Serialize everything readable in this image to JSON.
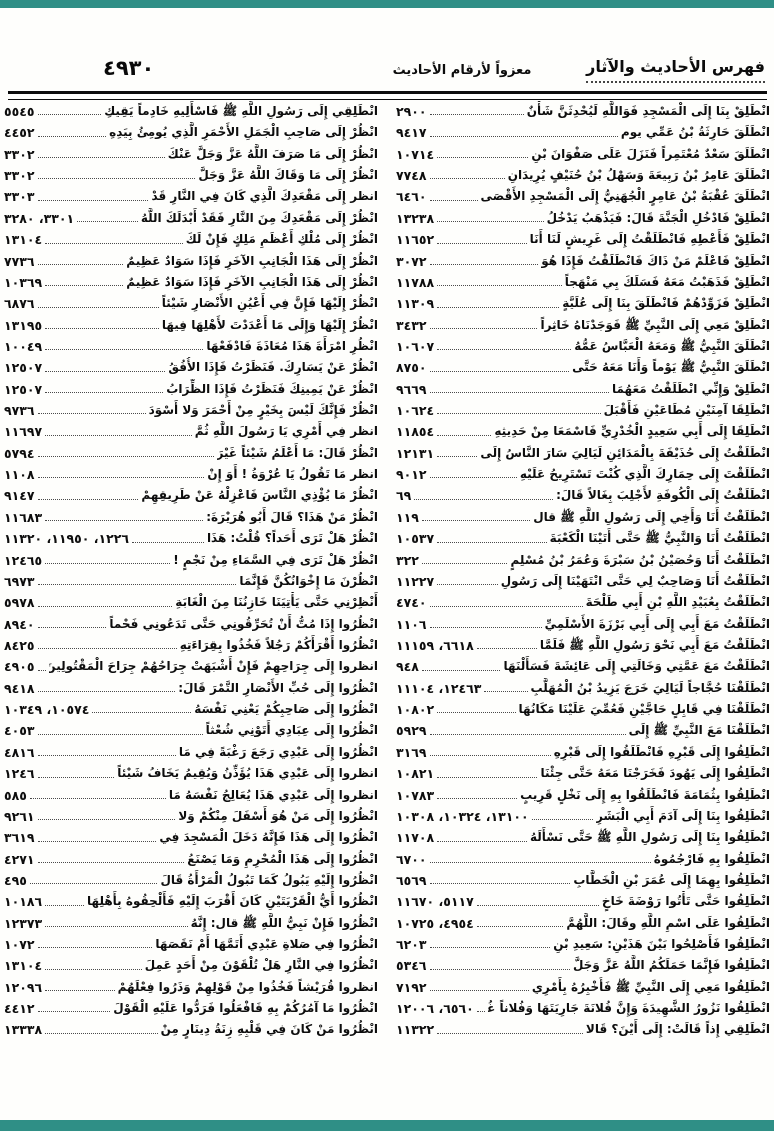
{
  "accent_color": "#2f8f86",
  "header": {
    "title_right": "فهرس الأحاديث والآثار",
    "title_center": "معزواً لأرقام الأحاديث",
    "page_number": "٤٩٣٠"
  },
  "columns": {
    "right": [
      {
        "text": "انْطَلِقْ بِنَا إِلَى الْمَسْجِدِ فَوَاللَّهِ لَيُحْدِثَنَّ شَأْنٌ",
        "nums": "٢٩٠٠"
      },
      {
        "text": "انْطَلَقَ حَارِثَةُ بْنُ عَمِّي يوم",
        "nums": "٩٤١٧"
      },
      {
        "text": "انْطَلَقَ سَعْدٌ مُعْتَمِراً فَنَزَلَ عَلَى صَفْوَانَ بْنِ",
        "nums": "١٠٧١٤"
      },
      {
        "text": "انْطَلَقَ عَامِرُ بْنُ رَبِيعَةَ وَسَهْلُ بْنُ حُنَيْفٍ يُرِيدَانِ",
        "nums": "٧٧٤٨"
      },
      {
        "text": "انْطَلَقَ عُقْبَةُ بْنُ عَامِرٍ الْجُهَنِيُّ إِلَى الْمَسْجِدِ الأَقْصَى",
        "nums": "٦٤٦٠"
      },
      {
        "text": "انْطَلِقْ فَادْخُلِ الْجَنَّةَ قَالَ: فَيَذْهَبُ يَدْخُلُ",
        "nums": "١٣٢٣٨"
      },
      {
        "text": "انْطَلِقْ فَأَعْطِهِ فَانْطَلَقْتُ إِلَى غَرِيشٍ لَنَا أَنَا",
        "nums": "١١٦٥٢"
      },
      {
        "text": "انْطَلِقْ فَاعْلَمْ مَنْ ذَاكَ فَانْطَلَقْتُ فَإِذَا هُوَ",
        "nums": "٣٠٧٢"
      },
      {
        "text": "انْطَلِقْ فَذَهَبْتُ مَعَهُ فَسَلَكَ بِي مَنْهَجاً",
        "nums": "١١٧٨٨"
      },
      {
        "text": "انْطَلِقْ فَزَوِّدْهُمْ فَانْطَلَقَ بِنَا إِلَى عُلَيَّةٍ",
        "nums": "١١٣٠٩"
      },
      {
        "text": "انْطَلِقْ مَعِي إِلَى النَّبِيِّ ﷺ فَوَجَدْنَاهُ خَاثِراً",
        "nums": "٣٤٣٢"
      },
      {
        "text": "انْطَلَقَ النَّبِيُّ ﷺ وَمَعَهُ الْعَبَّاسُ عَمُّهُ",
        "nums": "١٠٦٠٧"
      },
      {
        "text": "انْطَلَقَ النَّبِيُّ ﷺ يَوْماً وَأَنَا مَعَهُ حَتَّى",
        "nums": "٨٧٥٠"
      },
      {
        "text": "انْطَلِقْ وَإِنِّي انْطَلَقْتُ مَعَهُمَا",
        "nums": "٩٦٦٩"
      },
      {
        "text": "انْطَلِقَا آمِنَيْنِ مُطَاعَيْنِ فَأَقْبَلَ",
        "nums": "١٠٦٢٤"
      },
      {
        "text": "انْطَلِقَا إِلَى أَبِي سَعِيدٍ الْخُدْرِيِّ فَاسْمَعَا مِنْ حَدِيثِهِ",
        "nums": "١١٨٥٤"
      },
      {
        "text": "انْطَلَقْتُ إِلَى حُذَيْفَةَ بِالْمَدَائِنِ لَيَالِيَ سَارَ النَّاسُ إِلَى",
        "nums": "١٢١٣١"
      },
      {
        "text": "انْطَلَقْتَ إِلَى حِمَارِكَ الَّذِي كُنْتَ تَسْتَرِيحُ عَلَيْهِ",
        "nums": "٩٠١٢"
      },
      {
        "text": "انْطَلَقْتُ إِلَى الْكُوفَةِ لأَجْلِبَ بِغَالاً قَالَ:",
        "nums": "٦٩"
      },
      {
        "text": "انْطَلَقْتُ أَنَا وَأَخِي إِلَى رَسُولِ اللَّهِ ﷺ قال",
        "nums": "١١٩"
      },
      {
        "text": "انْطَلَقْتُ أَنَا وَالنَّبِيُّ ﷺ حَتَّى أَتَيْنَا الْكَعْبَةَ",
        "nums": "١٠٥٣٧"
      },
      {
        "text": "انْطَلَقْتُ أَنَا وَحُصَيْنُ بْنُ سَبْرَةَ وَعُمَرُ بْنُ مُسْلِمٍ",
        "nums": "٣٢٢"
      },
      {
        "text": "انْطَلَقْتُ أَنَا وَصَاحِبٌ لِي حَتَّى انْتَهَيْنَا إِلَى رَسُولِ",
        "nums": "١١٢٢٧"
      },
      {
        "text": "انْطَلَقْتُ بِعُبَيْدِ اللَّهِ بْنِ أَبِي طَلْحَةَ",
        "nums": "٤٧٤٠"
      },
      {
        "text": "انْطَلَقْتُ مَعَ أَبِي إِلَى أَبِي بَرْزَةَ الأَسْلَمِيِّ",
        "nums": "١١٠٦"
      },
      {
        "text": "انْطَلَقْتُ مَعَ أَبِي نَحْوَ رَسُولِ اللَّهِ ﷺ فَلَمَّا",
        "nums": "٦٦١٨، ١١١٥٩"
      },
      {
        "text": "انْطَلَقْتُ مَعَ عَمَّتِي وَخَالَتِي إِلَى عَائِشَةَ فَسَأَلْنَهَا",
        "nums": "٩٤٨"
      },
      {
        "text": "انْطَلَقْنَا حُجَّاجاً لَيَالِيَ خَرَجَ يَزِيدُ بْنُ الْمُهَلَّبِ",
        "nums": "١٢٤٦٣، ١١١٠٤"
      },
      {
        "text": "انْطَلَقْنَا فِي قَابِلٍ حَاجَّيْنِ فَعُمِّيَ عَلَيْنَا مَكَانُهَا",
        "nums": "١٠٨٠٢"
      },
      {
        "text": "انْطَلَقْنَا مَعَ النَّبِيِّ ﷺ إِلَى",
        "nums": "٥٩٢٩"
      },
      {
        "text": "انْطَلِقُوا إِلَى قَبْرِهِ فَانْطَلَقُوا إِلَى قَبْرِهِ",
        "nums": "٣١٦٩"
      },
      {
        "text": "انْطَلِقُوا إِلَى يَهُودَ فَخَرَجْنَا مَعَهُ حَتَّى جِئْنَا",
        "nums": "١٠٨٢١"
      },
      {
        "text": "انْطَلِقُوا بِثُمَامَةَ فَانْطَلَقُوا بِهِ إِلَى نَخْلٍ قَرِيبٍ",
        "nums": "١٠٧٨٣"
      },
      {
        "text": "انْطَلِقُوا بِنَا إِلَى آدَمَ أَبِي الْبَشَرِ",
        "nums": "١٣١٠٠، ١٠٣٢٤، ١٠٣٠٨"
      },
      {
        "text": "انْطَلِقُوا بِنَا إِلَى رَسُولِ اللَّهِ ﷺ حَتَّى نَسْأَلَهُ",
        "nums": "١١٧٠٨"
      },
      {
        "text": "انْطَلِقُوا بِهِ فَارْجُمُوهُ",
        "nums": "٦٧٠٠"
      },
      {
        "text": "انْطَلِقُوا بِهِمَا إِلَى عُمَرَ بْنِ الْخَطَّابِ",
        "nums": "٦٥٦٩"
      },
      {
        "text": "انْطَلِقُوا حَتَّى تَأْتُوا رَوْضَةَ خَاخٍ",
        "nums": "٥١١٧، ١١٦٧٠"
      },
      {
        "text": "انْطَلِقُوا عَلَى اسْمِ اللَّهِ وقَالَ: اللَّهُمَّ",
        "nums": "٤٩٥٤، ١٠٧٢٥"
      },
      {
        "text": "انْطَلِقُوا فَأَصْلِحُوا بَيْنَ هَذَيْنِ: سَعِيدِ بْنِ",
        "nums": "٦٢٠٣"
      },
      {
        "text": "انْطَلِقُوا فَإِنَّمَا حَمَلَكُمُ اللَّهُ عَزَّ وَجَلَّ",
        "nums": "٥٣٤٦"
      },
      {
        "text": "انْطَلِقُوا مَعِي إِلَى النَّبِيِّ ﷺ فَأُخْبِرُهُ بِأَمْرِي",
        "nums": "٧١٩٢"
      },
      {
        "text": "انْطَلِقُوا نَزُورُ الشَّهِيدَةَ وَإِنَّ فُلانَةَ جَارِيَتَهَا وَفُلاناً غُلامَهَا",
        "nums": "٦٥٦٠، ١٢٠٠٦"
      },
      {
        "text": "انْطَلِقِي إِذاً قَالَتْ: إِلَى أَيْنَ؟ قَالا",
        "nums": "١١٣٢٢"
      }
    ],
    "left": [
      {
        "text": "انْطَلِقِي إِلَى رَسُولِ اللَّهِ ﷺ فَاسْأَلِيهِ خَادِماً يَقِيكِ",
        "nums": "٥٥٤٥"
      },
      {
        "text": "انْظُرْ إِلَى صَاحِبِ الْجَمَلِ الأَحْمَرِ الَّذِي يُومِئُ بِيَدِهِ",
        "nums": "٤٤٥٢"
      },
      {
        "text": "انْظُرْ إِلَى مَا صَرَفَ اللَّهُ عَزَّ وَجَلَّ عَنْكَ",
        "nums": "٣٣٠٢"
      },
      {
        "text": "انْظُرْ إِلَى مَا وَقَاكَ اللَّهُ عَزَّ وَجَلَّ",
        "nums": "٣٣٠٢"
      },
      {
        "text": "انظر إِلَى مَقْعَدِكَ الَّذِي كَانَ فِي النَّارِ قَدْ",
        "nums": "٣٣٠٣"
      },
      {
        "text": "انْظُرْ إِلَى مَقْعَدِكَ مِنَ النَّارِ فَقَدْ أَبْدَلَكَ اللَّهُ",
        "nums": "٣٣٠١، ٣٢٨٠"
      },
      {
        "text": "انْظُرْ إِلَى مُلْكِ أَعْظَمِ مَلِكٍ فَإِنْ لَكَ",
        "nums": "١٣١٠٤"
      },
      {
        "text": "انْظُرْ إِلَى هَذَا الْجَانِبِ الآخَرِ فَإِذَا سَوَادٌ عَظِيمٌ",
        "nums": "٧٧٣٦"
      },
      {
        "text": "انْظُرْ إِلَى هَذَا الْجَانِبِ الآخَرِ فَإِذَا سَوَادٌ عَظِيمٌ",
        "nums": "١٠٣٦٩"
      },
      {
        "text": "انْظُرْ إِلَيْهَا فَإِنَّ فِي أَعْيُنِ الأَنْصَارِ شَيْئاً",
        "nums": "٦٨٧٦"
      },
      {
        "text": "انْظُرْ إِلَيْهَا وَإِلَى مَا أَعْدَدْتَ لأَهْلِهَا فِيهَا",
        "nums": "١٣١٩٥"
      },
      {
        "text": "انْظُرِ امْرَأَةَ هَذَا مُعَاذَةَ فَادْفَعْهَا",
        "nums": "١٠٠٤٩"
      },
      {
        "text": "انْظُرْ عَنْ يَسَارِكَ. فَنَظَرْتُ فَإِذَا الأُفُقُ",
        "nums": "١٢٥٠٧"
      },
      {
        "text": "انْظُرْ عَنْ يَمِينِكَ فَنَظَرْتُ فَإِذَا الظِّرَابُ",
        "nums": "١٢٥٠٧"
      },
      {
        "text": "انْظُرْ فَإِنَّكَ لَيْسَ بِخَيْرٍ مِنْ أَحْمَرَ وَلا أَسْوَدَ",
        "nums": "٩٧٣٦"
      },
      {
        "text": "انظر فِي أَمْرِي يَا رَسُولَ اللَّهِ ثُمَّ",
        "nums": "١١٦٩٧"
      },
      {
        "text": "انْظُرْ قَالَ: مَا أَعْلَمُ شَيْئاً غَيْرَ",
        "nums": "٥٧٩٤"
      },
      {
        "text": "انظر مَا تَقُولُ يَا عُرْوَةُ ! أَوَ إِنْ",
        "nums": "١١٠٨"
      },
      {
        "text": "انْظُرْ مَا يُؤْذِي النَّاسَ فَاعْزِلْهُ عَنْ طَرِيقِهِمْ",
        "nums": "٩١٤٧"
      },
      {
        "text": "انْظُرْ مَنْ هَذَا؟ قَالَ أَبُو هُرَيْرَةَ:",
        "nums": "١١٦٨٣"
      },
      {
        "text": "انْظُرْ هَلْ تَرَى أَحَداً؟ قُلْتُ: هَذَا",
        "nums": "١٢٢٦، ١١٩٥٠، ١١٣٢٠"
      },
      {
        "text": "انْظُرْ هَلْ تَرَى فِي السَّمَاءِ مِنْ نَجْمٍ !",
        "nums": "١٢٤٦٥"
      },
      {
        "text": "انْظُرْنَ مَا إِخْوَانُكُنَّ فَإِنَّمَا",
        "nums": "٦٩٧٣"
      },
      {
        "text": "أَنْظِرْنِي حَتَّى يَأْتِيَنَا خَازِنُنَا مِنَ الْغَابَةِ",
        "nums": "٥٩٧٨"
      },
      {
        "text": "انْظُرُوا إِذَا مُتُّ أَنْ تُحَرِّقُونِي حَتَّى تَدَعُونِي فَحْماً",
        "nums": "٨٩٤٠"
      },
      {
        "text": "انْظُرُوا أَقْرَأَكُمْ رَجُلاً فَخُذُوا بِقِرَاءَتِهِ",
        "nums": "٨٤٢٥"
      },
      {
        "text": "انظروا إِلَى جِرَاحِهِمْ فَإِنْ أَشْبَهَتْ جِرَاحُهُمْ جِرَاحَ الْمَقْتُولِينَ",
        "nums": "٤٩٠٥"
      },
      {
        "text": "انْظُرُوا إِلَى حُبِّ الأَنْصَارِ التَّمْرَ قَالَ:",
        "nums": "٩٤١٨"
      },
      {
        "text": "انْظُرُوا إِلَى صَاحِبِكُمْ يَعْنِي نَفْسَهُ",
        "nums": "١٠٥٧٤، ١٠٣٤٩"
      },
      {
        "text": "انْظُرُوا إِلَى عِبَادِي أَتَوْنِي شُعْثاً",
        "nums": "٤٠٥٣"
      },
      {
        "text": "انْظُرُوا إِلَى عَبْدِي رَجَعَ رَغْبَةً فِي مَا",
        "nums": "٤٨١٦"
      },
      {
        "text": "انظروا إِلَى عَبْدِي هَذَا يُؤَذِّنُ وَيُقِيمُ يَخَافُ شَيْئاً",
        "nums": "١٢٤٦"
      },
      {
        "text": "انظروا إِلَى عَبْدِي هَذَا يُعَالِجُ نَفْسَهُ مَا",
        "nums": "٥٨٥"
      },
      {
        "text": "انْظُرُوا إِلَى مَنْ هُوَ أَسْفَلَ مِنْكُمْ وَلا",
        "nums": "٩٢٦١"
      },
      {
        "text": "انْظُرُوا إِلَى هَذَا فَإِنَّهُ دَخَلَ الْمَسْجِدَ فِي",
        "nums": "٣٦١٩"
      },
      {
        "text": "انْظُرُوا إِلَى هَذَا الْمُحْرِمِ وَمَا يَصْنَعُ",
        "nums": "٤٢٧١"
      },
      {
        "text": "انْظُرُوا إِلَيْهِ يَبُولُ كَمَا تَبُولُ الْمَرْأَةُ قَالَ",
        "nums": "٤٩٥"
      },
      {
        "text": "انْظُرُوا أَيُّ الْقَرْيَتَيْنِ كَانَ أَقْرَبَ إِلَيْهِ فَأَلْحِقُوهُ بِأَهْلِهَا",
        "nums": "١٠١٨٦"
      },
      {
        "text": "انْظُرُوا فَإِنْ نَبِيُّ اللَّهِ ﷺ قال: إِنَّهُ",
        "nums": "١٢٣٧٣"
      },
      {
        "text": "انْظُرُوا فِي صَلاةِ عَبْدِي أَتَمَّهَا أَمْ نَقَصَهَا",
        "nums": "١٠٧٢"
      },
      {
        "text": "انْظُرُوا فِي النَّارِ هَلْ تُلْقَوْنَ مِنْ أَحَدٍ عَمِلَ",
        "nums": "١٣١٠٤"
      },
      {
        "text": "انظروا قُرَيْشاً فَخُذُوا مِنْ قَوْلِهِمْ وَذَرُوا فِعْلَهُمْ",
        "nums": "١٢٠٩٦"
      },
      {
        "text": "انْظُرُوا مَا آمُرُكُمْ بِهِ فَافْعَلُوا فَرَدُّوا عَلَيْهِ الْقَوْلَ",
        "nums": "٤٤١٢"
      },
      {
        "text": "انْظُرُوا مَنْ كَانَ فِي قَلْبِهِ زِنَةُ دِينَارٍ مِنْ",
        "nums": "١٣٣٣٨"
      }
    ]
  }
}
